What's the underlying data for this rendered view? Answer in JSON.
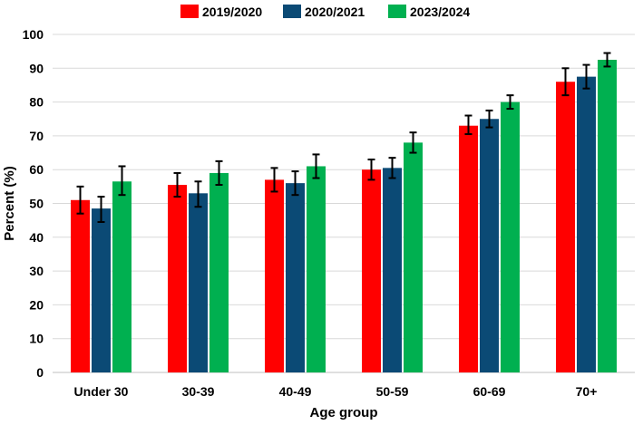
{
  "chart_data": {
    "type": "bar",
    "title": "",
    "xlabel": "Age group",
    "ylabel": "Percent (%)",
    "ylim": [
      0,
      100
    ],
    "yticks": [
      0,
      10,
      20,
      30,
      40,
      50,
      60,
      70,
      80,
      90,
      100
    ],
    "grid": true,
    "legend_position": "top-center",
    "categories": [
      "Under 30",
      "30-39",
      "40-49",
      "50-59",
      "60-69",
      "70+"
    ],
    "series": [
      {
        "name": "2019/2020",
        "color": "#ff0000",
        "values": [
          51,
          55.5,
          57,
          60,
          73,
          86
        ],
        "err_low": [
          47,
          52,
          53.5,
          57,
          70.5,
          82
        ],
        "err_high": [
          55,
          59,
          60.5,
          63,
          76,
          90
        ]
      },
      {
        "name": "2020/2021",
        "color": "#0b4a75",
        "values": [
          48.5,
          53,
          56,
          60.5,
          75,
          87.5
        ],
        "err_low": [
          44.5,
          49,
          52.5,
          57.5,
          72.5,
          84
        ],
        "err_high": [
          52,
          56.5,
          59.5,
          63.5,
          77.5,
          91
        ]
      },
      {
        "name": "2023/2024",
        "color": "#00b050",
        "values": [
          56.5,
          59,
          61,
          68,
          80,
          92.5
        ],
        "err_low": [
          52.5,
          55.5,
          57.5,
          65,
          78,
          90.5
        ],
        "err_high": [
          61,
          62.5,
          64.5,
          71,
          82,
          94.5
        ]
      }
    ]
  }
}
